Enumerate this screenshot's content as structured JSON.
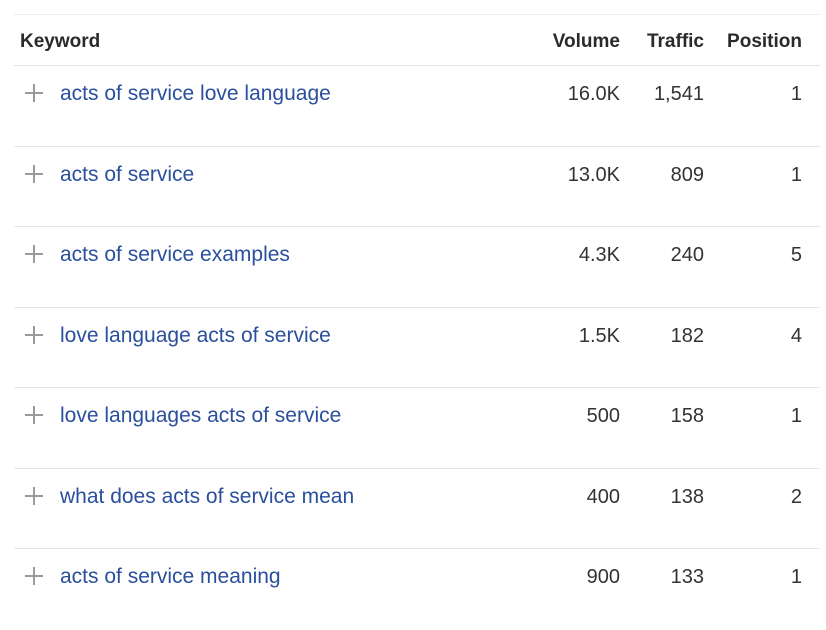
{
  "table": {
    "headers": {
      "keyword": "Keyword",
      "volume": "Volume",
      "traffic": "Traffic",
      "position": "Position"
    },
    "rows": [
      {
        "keyword": "acts of service love language",
        "volume": "16.0K",
        "traffic": "1,541",
        "position": "1"
      },
      {
        "keyword": "acts of service",
        "volume": "13.0K",
        "traffic": "809",
        "position": "1"
      },
      {
        "keyword": "acts of service examples",
        "volume": "4.3K",
        "traffic": "240",
        "position": "5"
      },
      {
        "keyword": "love language acts of service",
        "volume": "1.5K",
        "traffic": "182",
        "position": "4"
      },
      {
        "keyword": "love languages acts of service",
        "volume": "500",
        "traffic": "158",
        "position": "1"
      },
      {
        "keyword": "what does acts of service mean",
        "volume": "400",
        "traffic": "138",
        "position": "2"
      },
      {
        "keyword": "acts of service meaning",
        "volume": "900",
        "traffic": "133",
        "position": "1"
      }
    ]
  },
  "colors": {
    "link": "#2a4f9c",
    "text": "#333333",
    "header": "#2a2a2a",
    "icon": "#9a9a9a",
    "divider": "#e6e6e6"
  },
  "icons": {
    "row_add": "plus-icon"
  }
}
